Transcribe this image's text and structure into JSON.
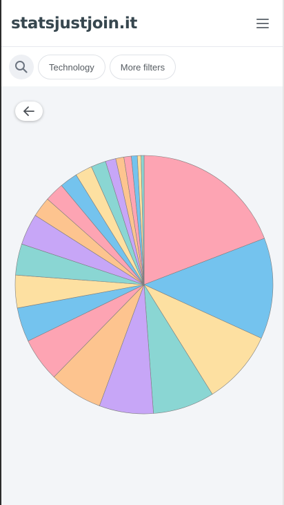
{
  "app": {
    "title": "statsjustjoin.it"
  },
  "header": {
    "menu_icon": "hamburger-menu-icon"
  },
  "filters": {
    "search_icon": "search-icon",
    "technology_label": "Technology",
    "more_filters_label": "More filters"
  },
  "back_icon": "arrow-left-icon",
  "colors": {
    "pink": "#fda4b3",
    "blue": "#74c3ee",
    "yellow": "#fde0a1",
    "teal": "#8ad6d3",
    "purple": "#c7a6f7",
    "orange": "#fdc48f"
  },
  "chart_data": {
    "type": "pie",
    "values": [
      20.6,
      13.6,
      10.0,
      8.3,
      7.3,
      7.2,
      5.9,
      4.6,
      4.4,
      4.2,
      4.2,
      2.7,
      2.6,
      2.4,
      2.3,
      2.0,
      1.4,
      1.1,
      1.0,
      0.8,
      0.5,
      0.4
    ],
    "colors": [
      "#fda4b3",
      "#74c3ee",
      "#fde0a1",
      "#8ad6d3",
      "#c7a6f7",
      "#fdc48f",
      "#fda4b3",
      "#74c3ee",
      "#fde0a1",
      "#8ad6d3",
      "#c7a6f7",
      "#fdc48f",
      "#fda4b3",
      "#74c3ee",
      "#fde0a1",
      "#8ad6d3",
      "#c7a6f7",
      "#fdc48f",
      "#fda4b3",
      "#74c3ee",
      "#fde0a1",
      "#8ad6d3"
    ],
    "start": "top",
    "direction": "clockwise"
  }
}
